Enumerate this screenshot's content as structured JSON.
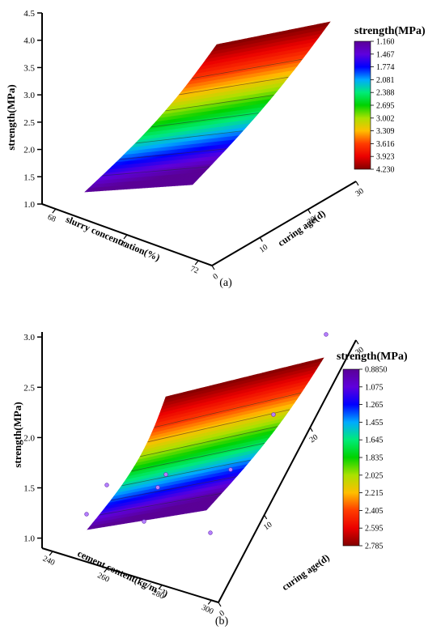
{
  "chart_data": [
    {
      "type": "surface3d",
      "panel_label": "(a)",
      "colorbar_title": "strength(MPa)",
      "colorbar_ticks": [
        "1.160",
        "1.467",
        "1.774",
        "2.081",
        "2.388",
        "2.695",
        "3.002",
        "3.309",
        "3.616",
        "3.923",
        "4.230"
      ],
      "z_axis": {
        "label": "strength(MPa)",
        "ticks": [
          "1.0",
          "1.5",
          "2.0",
          "2.5",
          "3.0",
          "3.5",
          "4.0",
          "4.5"
        ],
        "range": [
          1.0,
          4.5
        ]
      },
      "x_axis": {
        "label": "slurry concentration(%)",
        "ticks": [
          "68",
          "70",
          "72"
        ]
      },
      "y_axis": {
        "label": "curing age(d)",
        "ticks": [
          "0",
          "10",
          "20",
          "30"
        ]
      },
      "surface_range": [
        1.16,
        4.23
      ]
    },
    {
      "type": "surface3d",
      "panel_label": "(b)",
      "colorbar_title": "strength(MPa)",
      "colorbar_ticks": [
        "0.8850",
        "1.075",
        "1.265",
        "1.455",
        "1.645",
        "1.835",
        "2.025",
        "2.215",
        "2.405",
        "2.595",
        "2.785"
      ],
      "z_axis": {
        "label": "strength(MPa)",
        "ticks": [
          "1.0",
          "1.5",
          "2.0",
          "2.5",
          "3.0"
        ],
        "range": [
          0.9,
          3.05
        ]
      },
      "x_axis": {
        "label": "cement content(kg/m⁻³)",
        "ticks": [
          "240",
          "260",
          "280",
          "300"
        ]
      },
      "y_axis": {
        "label": "curing age(d)",
        "ticks": [
          "0",
          "10",
          "20",
          "30"
        ]
      },
      "surface_range": [
        0.885,
        2.785
      ],
      "scatter_points": 9
    }
  ]
}
